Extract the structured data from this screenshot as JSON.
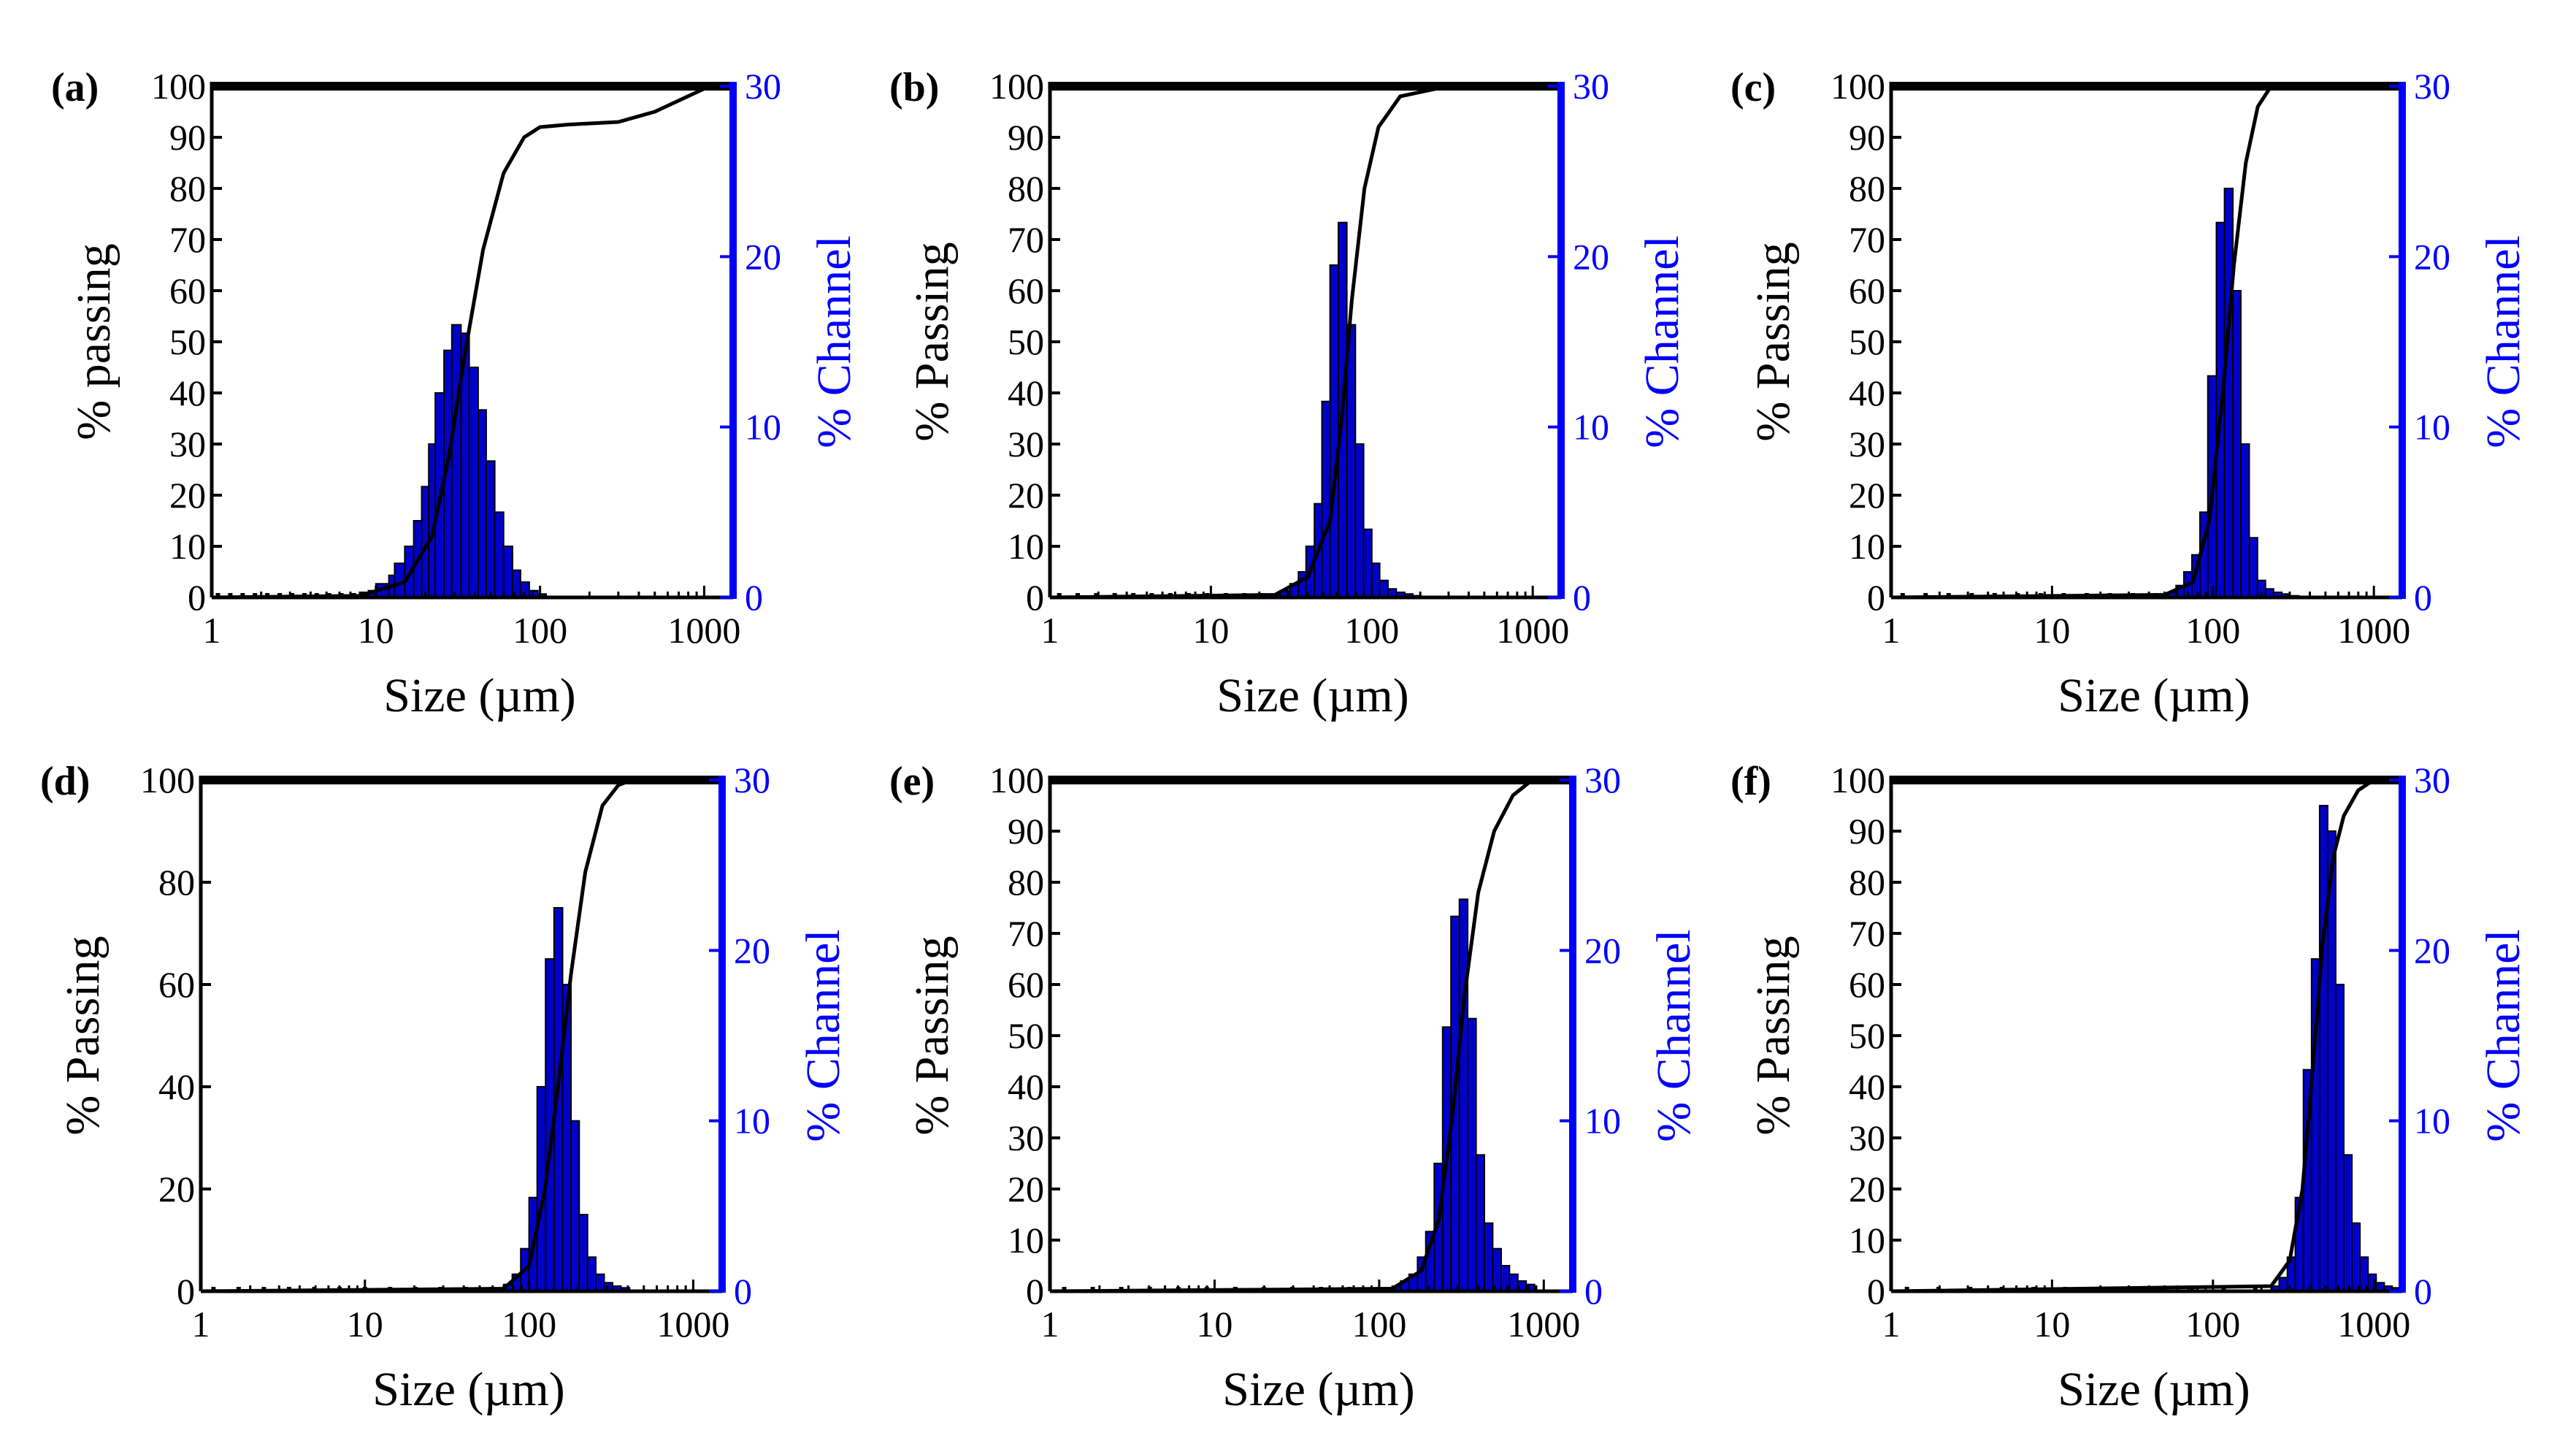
{
  "figure": {
    "background": "#ffffff",
    "bar_color": "#0000cc",
    "bar_edge": "#000000",
    "curve_color": "#000000",
    "right_axis_color": "#0000ff"
  },
  "chart_data": [
    {
      "panel": "(a)",
      "type": "bar",
      "xscale": "log",
      "xlim": [
        1,
        1500
      ],
      "xticks": [
        "1",
        "10",
        "100",
        "1000"
      ],
      "xlabel": "Size (µm)",
      "ylabel": "% passing",
      "ylim": [
        0,
        100
      ],
      "yticks": [
        "0",
        "10",
        "20",
        "30",
        "40",
        "50",
        "60",
        "70",
        "80",
        "90",
        "100"
      ],
      "y2label": "% Channel",
      "y2lim": [
        0,
        30
      ],
      "y2ticks": [
        "0",
        "10",
        "20",
        "30"
      ],
      "cumulative": {
        "name": "% passing",
        "x": [
          1,
          8,
          15,
          22,
          28,
          35,
          45,
          60,
          80,
          100,
          150,
          300,
          500,
          1000,
          1500
        ],
        "y": [
          0,
          0.3,
          3,
          12,
          28,
          48,
          68,
          83,
          90,
          92,
          92.5,
          93,
          95,
          99.5,
          100
        ]
      },
      "channel": {
        "name": "% Channel",
        "bins": [
          8,
          9,
          10,
          12,
          13,
          15,
          17,
          19,
          21,
          23,
          26,
          29,
          33,
          37,
          42,
          47,
          53,
          60,
          68,
          76,
          86,
          97
        ],
        "values": [
          0.3,
          0.4,
          0.8,
          1.3,
          2,
          3,
          4.5,
          6.5,
          9,
          12,
          14.5,
          16,
          15.5,
          13.5,
          11,
          8,
          5,
          3,
          1.6,
          0.9,
          0.4,
          0.2
        ]
      }
    },
    {
      "panel": "(b)",
      "type": "bar",
      "xscale": "log",
      "xlim": [
        1,
        1500
      ],
      "xticks": [
        "1",
        "10",
        "100",
        "1000"
      ],
      "xlabel": "Size (µm)",
      "ylabel": "% Passing",
      "ylim": [
        0,
        100
      ],
      "yticks": [
        "0",
        "10",
        "20",
        "30",
        "40",
        "50",
        "60",
        "70",
        "80",
        "90",
        "100"
      ],
      "y2label": "% Channel",
      "y2lim": [
        0,
        30
      ],
      "y2ticks": [
        "0",
        "10",
        "20",
        "30"
      ],
      "cumulative": {
        "name": "% Passing",
        "x": [
          1,
          25,
          40,
          55,
          65,
          75,
          90,
          110,
          150,
          250,
          400,
          1500
        ],
        "y": [
          0,
          0.5,
          4,
          15,
          35,
          58,
          80,
          92,
          98,
          99.5,
          100,
          100
        ]
      },
      "channel": {
        "name": "% Channel",
        "bins": [
          24,
          27,
          31,
          35,
          39,
          44,
          49,
          55,
          62,
          70,
          79,
          89,
          100,
          112,
          126,
          142,
          160,
          180
        ],
        "values": [
          0.2,
          0.4,
          0.8,
          1.5,
          3,
          5.5,
          11.5,
          19.5,
          22,
          16,
          9,
          4,
          2,
          1,
          0.5,
          0.3,
          0.2,
          0.1
        ]
      }
    },
    {
      "panel": "(c)",
      "type": "bar",
      "xscale": "log",
      "xlim": [
        1,
        1500
      ],
      "xticks": [
        "1",
        "10",
        "100",
        "1000"
      ],
      "xlabel": "Size (µm)",
      "ylabel": "% Passing",
      "ylim": [
        0,
        100
      ],
      "yticks": [
        "0",
        "10",
        "20",
        "30",
        "40",
        "50",
        "60",
        "70",
        "80",
        "90",
        "100"
      ],
      "y2label": "% Channel",
      "y2lim": [
        0,
        30
      ],
      "y2ticks": [
        "0",
        "10",
        "20",
        "30"
      ],
      "cumulative": {
        "name": "% Passing",
        "x": [
          1,
          50,
          75,
          95,
          115,
          135,
          160,
          190,
          230,
          1500
        ],
        "y": [
          0,
          0.5,
          3,
          15,
          40,
          65,
          85,
          96,
          100,
          100
        ]
      },
      "channel": {
        "name": "% Channel",
        "bins": [
          52,
          59,
          66,
          74,
          83,
          93,
          105,
          118,
          133,
          149,
          168,
          189,
          212,
          238,
          268,
          301
        ],
        "values": [
          0.3,
          0.7,
          1.5,
          2.5,
          5,
          13,
          22,
          24,
          18,
          9,
          3.5,
          1,
          0.5,
          0.3,
          0.2,
          0.1
        ]
      }
    },
    {
      "panel": "(d)",
      "type": "bar",
      "xscale": "log",
      "xlim": [
        1,
        1500
      ],
      "xticks": [
        "1",
        "10",
        "100",
        "1000"
      ],
      "xlabel": "Size (µm)",
      "ylabel": "% Passing",
      "ylim": [
        0,
        100
      ],
      "yticks": [
        "0",
        "20",
        "40",
        "60",
        "80",
        "100"
      ],
      "y2label": "% Channel",
      "y2lim": [
        0,
        30
      ],
      "y2ticks": [
        "0",
        "10",
        "20",
        "30"
      ],
      "cumulative": {
        "name": "% Passing",
        "x": [
          1,
          70,
          100,
          125,
          150,
          180,
          220,
          280,
          350,
          420,
          1500
        ],
        "y": [
          0,
          0.5,
          5,
          20,
          40,
          62,
          82,
          95,
          99,
          100,
          100
        ]
      },
      "channel": {
        "name": "% Channel",
        "bins": [
          70,
          79,
          89,
          100,
          112,
          126,
          142,
          160,
          180,
          202,
          227,
          255,
          287,
          323,
          363
        ],
        "values": [
          0.4,
          1,
          2.5,
          5.5,
          12,
          19.5,
          22.5,
          18,
          10,
          4.5,
          2,
          1,
          0.5,
          0.3,
          0.2
        ]
      }
    },
    {
      "panel": "(e)",
      "type": "bar",
      "xscale": "log",
      "xlim": [
        1,
        1500
      ],
      "xticks": [
        "1",
        "10",
        "100",
        "1000"
      ],
      "xlabel": "Size (µm)",
      "ylabel": "% Passing",
      "ylim": [
        0,
        100
      ],
      "yticks": [
        "0",
        "10",
        "20",
        "30",
        "40",
        "50",
        "60",
        "70",
        "80",
        "90",
        "100"
      ],
      "y2label": "% Channel",
      "y2lim": [
        0,
        30
      ],
      "y2ticks": [
        "0",
        "10",
        "20",
        "30"
      ],
      "cumulative": {
        "name": "% Passing",
        "x": [
          1,
          120,
          180,
          230,
          280,
          330,
          400,
          500,
          650,
          850,
          1500
        ],
        "y": [
          0,
          0.5,
          4,
          14,
          35,
          58,
          78,
          90,
          97,
          100,
          100
        ]
      },
      "channel": {
        "name": "% Channel",
        "bins": [
          120,
          135,
          152,
          171,
          192,
          216,
          243,
          273,
          307,
          345,
          388,
          436,
          490,
          551,
          619,
          696,
          782
        ],
        "values": [
          0.3,
          0.6,
          1,
          2,
          3.5,
          7.5,
          15.5,
          22,
          23,
          16,
          8,
          4,
          2.5,
          1.5,
          1,
          0.6,
          0.4
        ]
      }
    },
    {
      "panel": "(f)",
      "type": "bar",
      "xscale": "log",
      "xlim": [
        1,
        1500
      ],
      "xticks": [
        "1",
        "10",
        "100",
        "1000"
      ],
      "xlabel": "Size (µm)",
      "ylabel": "% Passing",
      "ylim": [
        0,
        100
      ],
      "yticks": [
        "0",
        "10",
        "20",
        "30",
        "40",
        "50",
        "60",
        "70",
        "80",
        "90",
        "100"
      ],
      "y2label": "% Channel",
      "y2lim": [
        0,
        30
      ],
      "y2ticks": [
        "0",
        "10",
        "20",
        "30"
      ],
      "cumulative": {
        "name": "% Passing",
        "x": [
          1,
          230,
          300,
          360,
          420,
          480,
          560,
          650,
          800,
          1000,
          1500
        ],
        "y": [
          0,
          1,
          6,
          20,
          45,
          68,
          85,
          93,
          98,
          100,
          100
        ]
      },
      "channel": {
        "name": "% Channel",
        "bins": [
          230,
          258,
          290,
          325,
          365,
          410,
          460,
          516,
          579,
          650,
          730,
          819,
          920,
          1033,
          1160,
          1300
        ],
        "values": [
          0.3,
          0.8,
          2,
          5.5,
          13,
          19.5,
          28.5,
          27,
          18,
          8,
          4,
          2,
          1,
          0.5,
          0.3,
          0.2
        ]
      }
    }
  ]
}
